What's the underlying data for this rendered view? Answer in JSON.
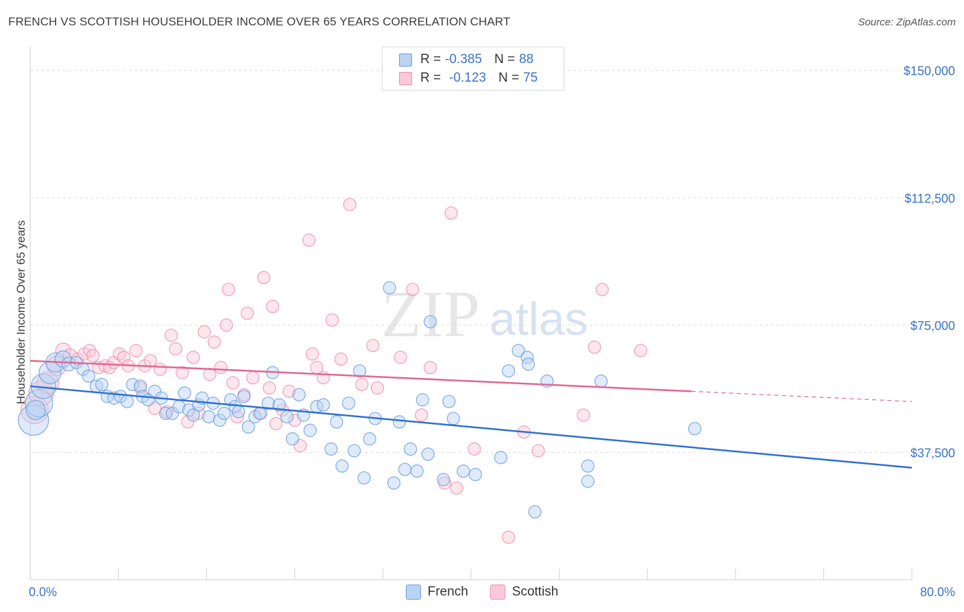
{
  "title": "FRENCH VS SCOTTISH HOUSEHOLDER INCOME OVER 65 YEARS CORRELATION CHART",
  "source": "Source: ZipAtlas.com",
  "watermark": {
    "zip": "ZIP",
    "atlas": "atlas"
  },
  "legend": {
    "french": {
      "r_label": "R =",
      "r_value": "-0.385",
      "n_label": "N =",
      "n_value": "88"
    },
    "scottish": {
      "r_label": "R =",
      "r_value": "-0.123",
      "n_label": "N =",
      "n_value": "75"
    }
  },
  "bottom_legend": {
    "french": "French",
    "scottish": "Scottish"
  },
  "colors": {
    "french": "#6a9fe0",
    "french_fill": "#b9d3f3",
    "french_line": "#2f6fcf",
    "scottish": "#ee8fae",
    "scottish_fill": "#f9c9d8",
    "scottish_line": "#e06690",
    "axis_text": "#3b73c4",
    "grid": "#dcdcdc"
  },
  "chart_data": {
    "type": "scatter",
    "title": "FRENCH VS SCOTTISH HOUSEHOLDER INCOME OVER 65 YEARS CORRELATION CHART",
    "xlabel": "",
    "ylabel": "Householder Income Over 65 years",
    "xlim": [
      0,
      80
    ],
    "ylim": [
      0,
      155000
    ],
    "x_tick_labels": [
      "0.0%",
      "80.0%"
    ],
    "y_ticks": [
      37500,
      75000,
      112500,
      150000
    ],
    "y_tick_labels": [
      "$37,500",
      "$75,000",
      "$112,500",
      "$150,000"
    ],
    "grid": "horizontal dashed",
    "legend_position": "top-center",
    "series": [
      {
        "name": "French",
        "r": -0.385,
        "n": 88,
        "trend": {
          "x": [
            0,
            80
          ],
          "y": [
            57000,
            33000
          ]
        },
        "points": [
          [
            0.3,
            47000,
            22
          ],
          [
            0.8,
            52000,
            20
          ],
          [
            1.2,
            57000,
            18
          ],
          [
            1.8,
            61000,
            16
          ],
          [
            2.3,
            64000,
            14
          ],
          [
            3.0,
            65000,
            12
          ],
          [
            3.5,
            63500,
            10
          ],
          [
            4.2,
            64000,
            9
          ],
          [
            4.8,
            62000,
            9
          ],
          [
            5.3,
            60000,
            9
          ],
          [
            6.0,
            57000,
            9
          ],
          [
            6.5,
            57500,
            9
          ],
          [
            7.0,
            54000,
            9
          ],
          [
            7.6,
            53500,
            9
          ],
          [
            8.2,
            54000,
            9
          ],
          [
            8.8,
            52500,
            9
          ],
          [
            9.3,
            57500,
            9
          ],
          [
            10.0,
            57000,
            9
          ],
          [
            10.2,
            54000,
            9
          ],
          [
            10.7,
            53000,
            9
          ],
          [
            11.3,
            55500,
            9
          ],
          [
            11.9,
            53500,
            9
          ],
          [
            12.3,
            49000,
            9
          ],
          [
            12.9,
            49000,
            9
          ],
          [
            13.5,
            51000,
            9
          ],
          [
            14.0,
            55000,
            9
          ],
          [
            14.4,
            50000,
            9
          ],
          [
            14.8,
            48500,
            9
          ],
          [
            15.3,
            51500,
            9
          ],
          [
            15.6,
            53500,
            9
          ],
          [
            16.2,
            48000,
            9
          ],
          [
            16.6,
            52000,
            9
          ],
          [
            17.2,
            47000,
            9
          ],
          [
            17.6,
            49000,
            9
          ],
          [
            18.2,
            53000,
            9
          ],
          [
            18.6,
            51000,
            9
          ],
          [
            18.9,
            49500,
            9
          ],
          [
            19.4,
            54000,
            9
          ],
          [
            19.8,
            45000,
            9
          ],
          [
            20.4,
            48000,
            9
          ],
          [
            20.9,
            49000,
            9
          ],
          [
            21.6,
            52000,
            9
          ],
          [
            22.0,
            61000,
            9
          ],
          [
            22.6,
            51500,
            9
          ],
          [
            23.3,
            48000,
            9
          ],
          [
            23.8,
            41500,
            9
          ],
          [
            24.4,
            54500,
            9
          ],
          [
            24.8,
            48500,
            9
          ],
          [
            25.4,
            44000,
            9
          ],
          [
            26.0,
            51000,
            9
          ],
          [
            26.6,
            51500,
            9
          ],
          [
            27.3,
            38500,
            9
          ],
          [
            27.8,
            46500,
            9
          ],
          [
            28.3,
            33500,
            9
          ],
          [
            28.9,
            52000,
            9
          ],
          [
            29.4,
            38000,
            9
          ],
          [
            29.9,
            61500,
            9
          ],
          [
            30.3,
            30000,
            9
          ],
          [
            30.8,
            41500,
            9
          ],
          [
            31.3,
            47500,
            9
          ],
          [
            32.6,
            86000,
            9
          ],
          [
            33.0,
            28500,
            9
          ],
          [
            33.5,
            46500,
            9
          ],
          [
            34.0,
            32500,
            9
          ],
          [
            34.5,
            38500,
            9
          ],
          [
            35.1,
            32000,
            9
          ],
          [
            35.6,
            53000,
            9
          ],
          [
            36.1,
            37000,
            9
          ],
          [
            36.3,
            76000,
            9
          ],
          [
            37.5,
            29500,
            9
          ],
          [
            38.0,
            52500,
            9
          ],
          [
            38.4,
            47500,
            9
          ],
          [
            39.3,
            32000,
            9
          ],
          [
            40.4,
            31000,
            9
          ],
          [
            42.7,
            36000,
            9
          ],
          [
            43.4,
            61500,
            9
          ],
          [
            44.3,
            67500,
            9
          ],
          [
            45.1,
            65500,
            9
          ],
          [
            45.2,
            63500,
            9
          ],
          [
            45.8,
            20000,
            9
          ],
          [
            46.9,
            58500,
            9
          ],
          [
            50.6,
            33500,
            9
          ],
          [
            50.6,
            29000,
            9
          ],
          [
            51.8,
            58500,
            9
          ],
          [
            60.3,
            44500,
            9
          ],
          [
            0.5,
            50000,
            14
          ]
        ]
      },
      {
        "name": "Scottish",
        "r": -0.123,
        "n": 75,
        "trend": {
          "x": [
            0,
            80
          ],
          "y": [
            64500,
            52500
          ],
          "solid_until": 60
        },
        "points": [
          [
            0.4,
            50000,
            20
          ],
          [
            1.0,
            55000,
            18
          ],
          [
            1.6,
            58000,
            16
          ],
          [
            2.4,
            63000,
            14
          ],
          [
            3.0,
            67500,
            11
          ],
          [
            3.6,
            66000,
            10
          ],
          [
            4.3,
            65000,
            9
          ],
          [
            4.9,
            66500,
            9
          ],
          [
            5.4,
            67500,
            9
          ],
          [
            5.7,
            66000,
            9
          ],
          [
            6.2,
            62500,
            9
          ],
          [
            6.8,
            63000,
            9
          ],
          [
            7.2,
            62500,
            9
          ],
          [
            7.6,
            64000,
            9
          ],
          [
            8.1,
            66500,
            9
          ],
          [
            8.5,
            65500,
            9
          ],
          [
            8.9,
            63000,
            9
          ],
          [
            9.6,
            67500,
            9
          ],
          [
            10.0,
            56500,
            9
          ],
          [
            10.4,
            63000,
            9
          ],
          [
            10.9,
            64500,
            9
          ],
          [
            11.3,
            50500,
            9
          ],
          [
            11.8,
            62000,
            9
          ],
          [
            12.4,
            49500,
            9
          ],
          [
            12.8,
            72000,
            9
          ],
          [
            13.2,
            68000,
            9
          ],
          [
            13.8,
            61000,
            9
          ],
          [
            14.3,
            46500,
            9
          ],
          [
            14.8,
            65500,
            9
          ],
          [
            15.3,
            49000,
            9
          ],
          [
            15.8,
            73000,
            9
          ],
          [
            16.3,
            60500,
            9
          ],
          [
            16.7,
            70000,
            9
          ],
          [
            17.3,
            62500,
            9
          ],
          [
            17.8,
            75000,
            9
          ],
          [
            18.0,
            85500,
            9
          ],
          [
            18.4,
            58000,
            9
          ],
          [
            18.8,
            48000,
            9
          ],
          [
            19.4,
            54500,
            9
          ],
          [
            19.7,
            78500,
            9
          ],
          [
            20.2,
            59500,
            9
          ],
          [
            20.8,
            49000,
            9
          ],
          [
            21.2,
            89000,
            9
          ],
          [
            21.7,
            56500,
            9
          ],
          [
            22.0,
            80500,
            9
          ],
          [
            22.3,
            46000,
            9
          ],
          [
            22.9,
            50000,
            9
          ],
          [
            23.5,
            55500,
            9
          ],
          [
            24.0,
            47000,
            9
          ],
          [
            24.5,
            39500,
            9
          ],
          [
            25.3,
            100000,
            9
          ],
          [
            25.6,
            66500,
            9
          ],
          [
            26.0,
            62500,
            9
          ],
          [
            26.6,
            59500,
            9
          ],
          [
            27.4,
            76500,
            9
          ],
          [
            28.2,
            65000,
            9
          ],
          [
            29.0,
            110500,
            9
          ],
          [
            30.1,
            57500,
            9
          ],
          [
            31.1,
            69000,
            9
          ],
          [
            31.5,
            56500,
            9
          ],
          [
            33.6,
            65500,
            9
          ],
          [
            34.7,
            85500,
            9
          ],
          [
            35.5,
            48500,
            9
          ],
          [
            36.3,
            62500,
            9
          ],
          [
            37.6,
            28500,
            9
          ],
          [
            38.2,
            108000,
            9
          ],
          [
            38.7,
            27000,
            9
          ],
          [
            40.3,
            38500,
            9
          ],
          [
            43.4,
            12500,
            9
          ],
          [
            44.8,
            43500,
            9
          ],
          [
            46.1,
            38000,
            9
          ],
          [
            50.2,
            48500,
            9
          ],
          [
            51.2,
            68500,
            9
          ],
          [
            51.9,
            85500,
            9
          ],
          [
            55.4,
            67500,
            9
          ]
        ]
      }
    ]
  }
}
